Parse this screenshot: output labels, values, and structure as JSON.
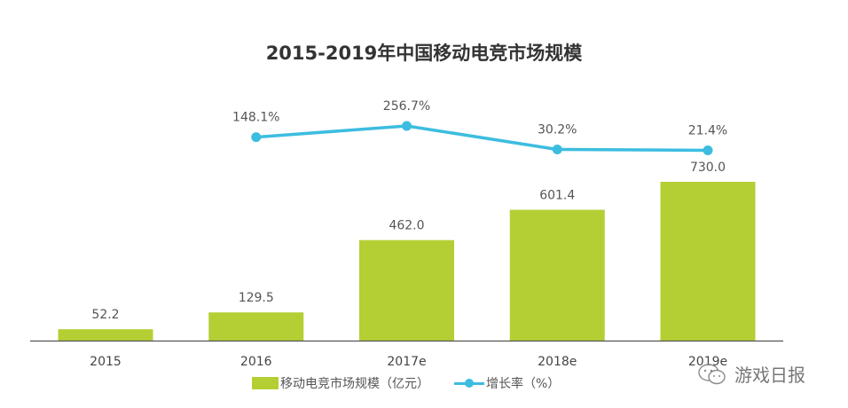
{
  "title": "2015-2019年中国移动电竞市场规模",
  "legend": {
    "bar_label": "移动电竞市场规模（亿元）",
    "line_label": "增长率（%）"
  },
  "watermark": {
    "text": "游戏日报",
    "icon": "wechat-icon"
  },
  "colors": {
    "bar": "#b4cf34",
    "line": "#3cbde0",
    "axis": "#555555",
    "title": "#333333"
  },
  "chart_data": {
    "type": "bar",
    "title": "2015-2019年中国移动电竞市场规模",
    "categories": [
      "2015",
      "2016",
      "2017e",
      "2018e",
      "2019e"
    ],
    "series": [
      {
        "name": "移动电竞市场规模（亿元）",
        "type": "bar",
        "values": [
          52.2,
          129.5,
          462.0,
          601.4,
          730.0
        ],
        "labels": [
          "52.2",
          "129.5",
          "462.0",
          "601.4",
          "730.0"
        ]
      },
      {
        "name": "增长率（%）",
        "type": "line",
        "values": [
          null,
          148.1,
          256.7,
          30.2,
          21.4
        ],
        "labels": [
          "",
          "148.1%",
          "256.7%",
          "30.2%",
          "21.4%"
        ]
      }
    ],
    "xlabel": "",
    "ylabel": "",
    "grid": false,
    "legend_position": "bottom"
  }
}
